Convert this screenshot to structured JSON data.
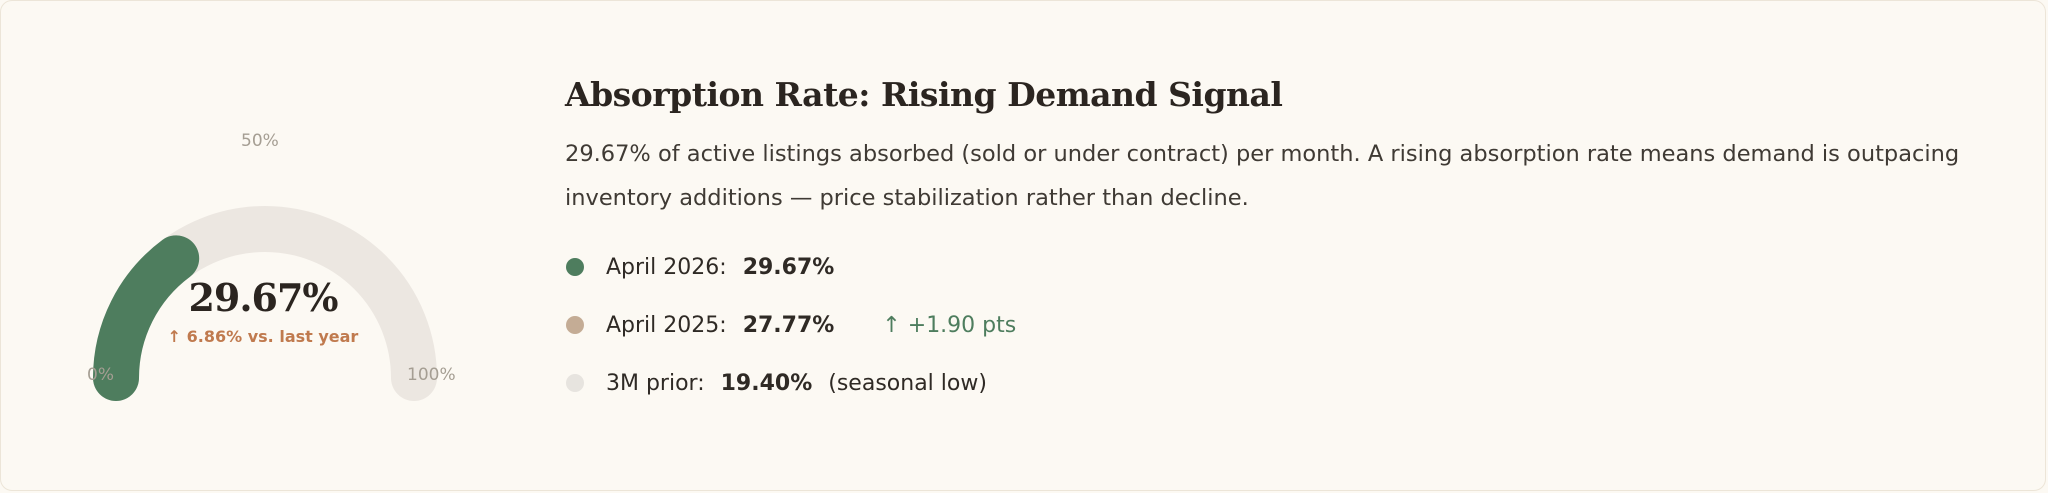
{
  "gauge": {
    "value_label": "29.67%",
    "change_label": "↑ 6.86% vs. last year",
    "tick_min": "0%",
    "tick_mid": "50%",
    "tick_max": "100%",
    "fill_fraction": 0.2967,
    "fill_color": "#4e7d5e",
    "track_color": "#ece7e1"
  },
  "heading": {
    "title": "Absorption Rate: Rising Demand Signal",
    "description": "29.67% of active listings absorbed (sold or under contract) per month. A rising absorption rate means demand is outpacing inventory additions — price stabilization rather than decline."
  },
  "stats": [
    {
      "label": "April 2026:",
      "value": "29.67%",
      "change": "",
      "note": "",
      "dot_color": "#4e7d5e"
    },
    {
      "label": "April 2025:",
      "value": "27.77%",
      "change": "↑ +1.90 pts",
      "note": "",
      "dot_color": "#c4ac95"
    },
    {
      "label": "3M prior:",
      "value": "19.40%",
      "change": "",
      "note": "(seasonal low)",
      "dot_color": "#e7e4df"
    }
  ]
}
